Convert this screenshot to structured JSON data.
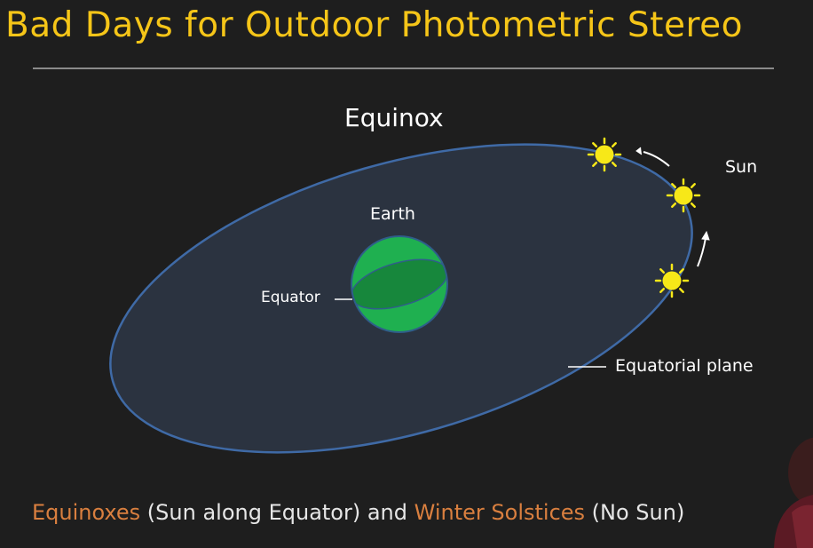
{
  "slide": {
    "title": "Bad Days for Outdoor Photometric Stereo",
    "accent_color": "#f5c518",
    "background_color": "#1e1e1e"
  },
  "diagram": {
    "heading": "Equinox",
    "earth_label": "Earth",
    "equator_label": "Equator",
    "sun_label": "Sun",
    "plane_label": "Equatorial plane",
    "colors": {
      "plane_fill": "#2b3340",
      "plane_stroke": "#3f6aa6",
      "earth_fill": "#1fb050",
      "earth_shade": "#17873c",
      "sun": "#f7e818"
    },
    "icons": [
      "sun-icon",
      "arrow-icon",
      "earth-globe"
    ]
  },
  "caption": {
    "part1": "Equinoxes",
    "part2": " (Sun along Equator) and ",
    "part3": "Winter Solstices",
    "part4": " (No Sun)",
    "highlight_color": "#d97f3f"
  }
}
